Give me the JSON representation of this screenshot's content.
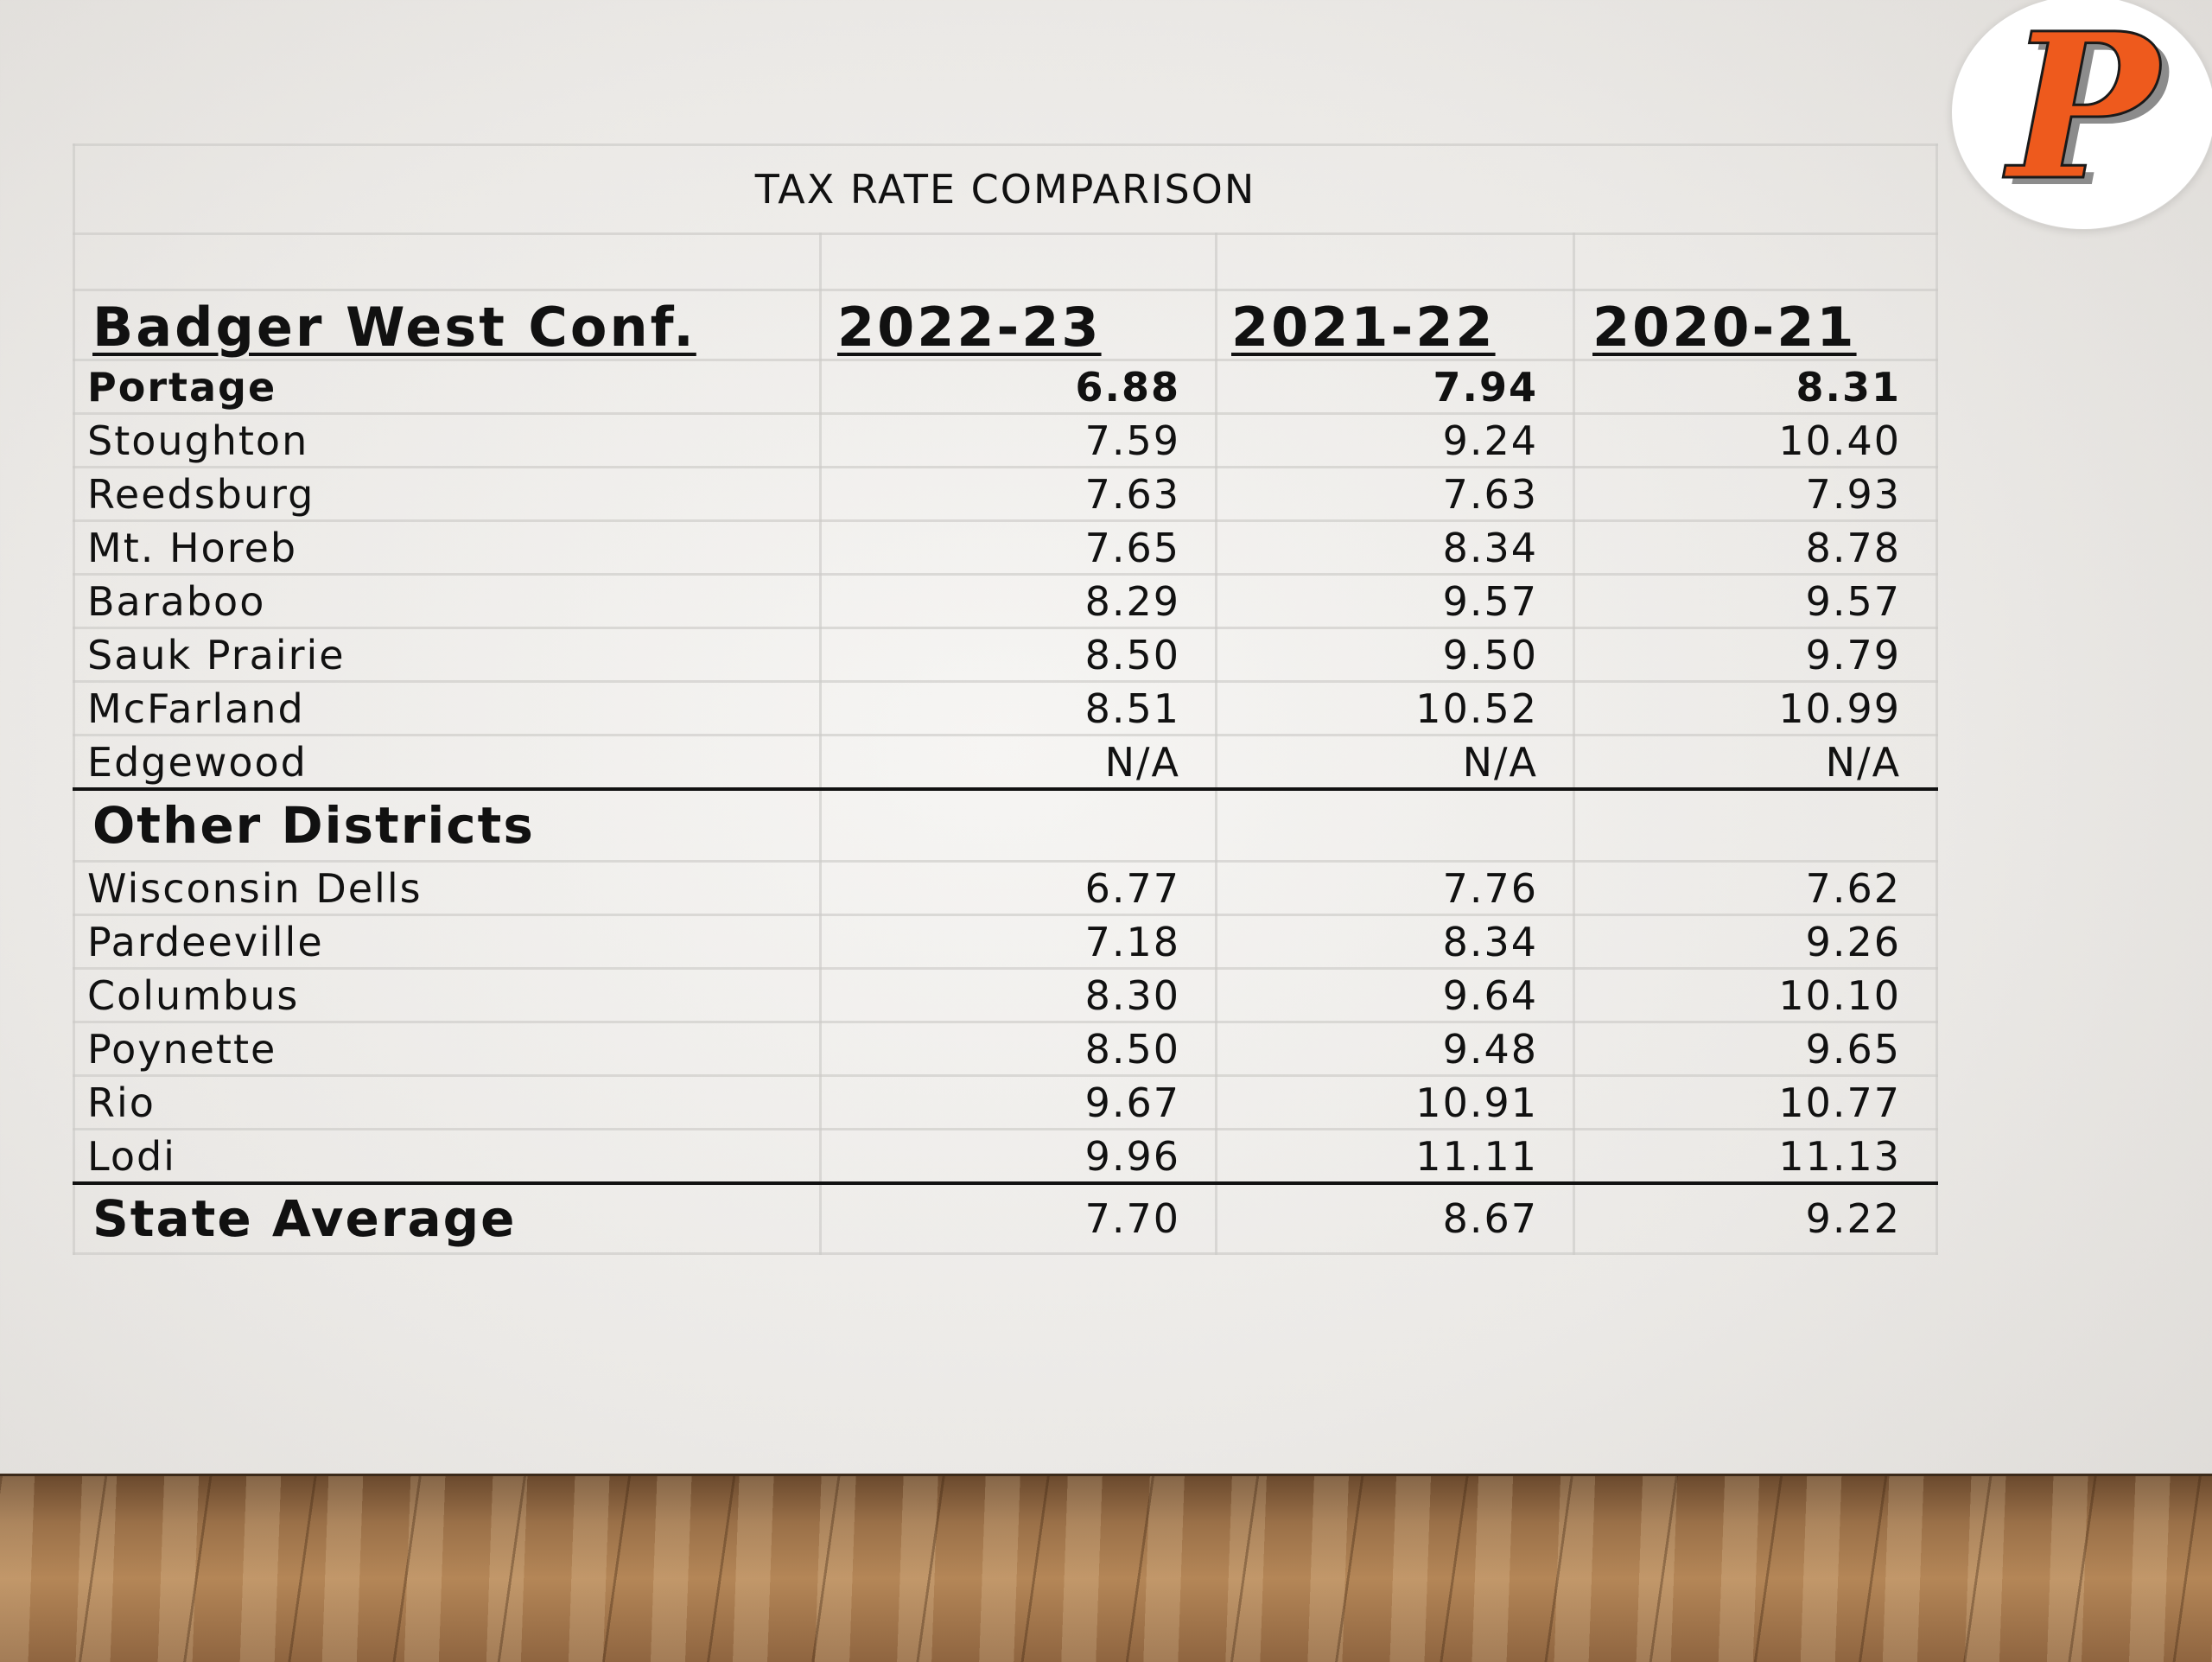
{
  "slide": {
    "title": "TAX RATE COMPARISON",
    "logo_text": "P",
    "colors": {
      "logo_orange": "#ee5a1d",
      "logo_gray": "#8c8c8c",
      "text": "#111111"
    }
  },
  "table": {
    "header": {
      "group": "Badger West Conf.",
      "years": [
        "2022-23",
        "2021-22",
        "2020-21"
      ]
    },
    "badger_rows": [
      {
        "name": "Portage",
        "v": [
          "6.88",
          "7.94",
          "8.31"
        ]
      },
      {
        "name": "Stoughton",
        "v": [
          "7.59",
          "9.24",
          "10.40"
        ]
      },
      {
        "name": "Reedsburg",
        "v": [
          "7.63",
          "7.63",
          "7.93"
        ]
      },
      {
        "name": "Mt. Horeb",
        "v": [
          "7.65",
          "8.34",
          "8.78"
        ]
      },
      {
        "name": "Baraboo",
        "v": [
          "8.29",
          "9.57",
          "9.57"
        ]
      },
      {
        "name": "Sauk Prairie",
        "v": [
          "8.50",
          "9.50",
          "9.79"
        ]
      },
      {
        "name": "McFarland",
        "v": [
          "8.51",
          "10.52",
          "10.99"
        ]
      },
      {
        "name": "Edgewood",
        "v": [
          "N/A",
          "N/A",
          "N/A"
        ]
      }
    ],
    "other_section": "Other Districts",
    "other_rows": [
      {
        "name": "Wisconsin Dells",
        "v": [
          "6.77",
          "7.76",
          "7.62"
        ]
      },
      {
        "name": "Pardeeville",
        "v": [
          "7.18",
          "8.34",
          "9.26"
        ]
      },
      {
        "name": "Columbus",
        "v": [
          "8.30",
          "9.64",
          "10.10"
        ]
      },
      {
        "name": "Poynette",
        "v": [
          "8.50",
          "9.48",
          "9.65"
        ]
      },
      {
        "name": "Rio",
        "v": [
          "9.67",
          "10.91",
          "10.77"
        ]
      },
      {
        "name": "Lodi",
        "v": [
          "9.96",
          "11.11",
          "11.13"
        ]
      }
    ],
    "state": {
      "name": "State Average",
      "v": [
        "7.70",
        "8.67",
        "9.22"
      ]
    }
  }
}
